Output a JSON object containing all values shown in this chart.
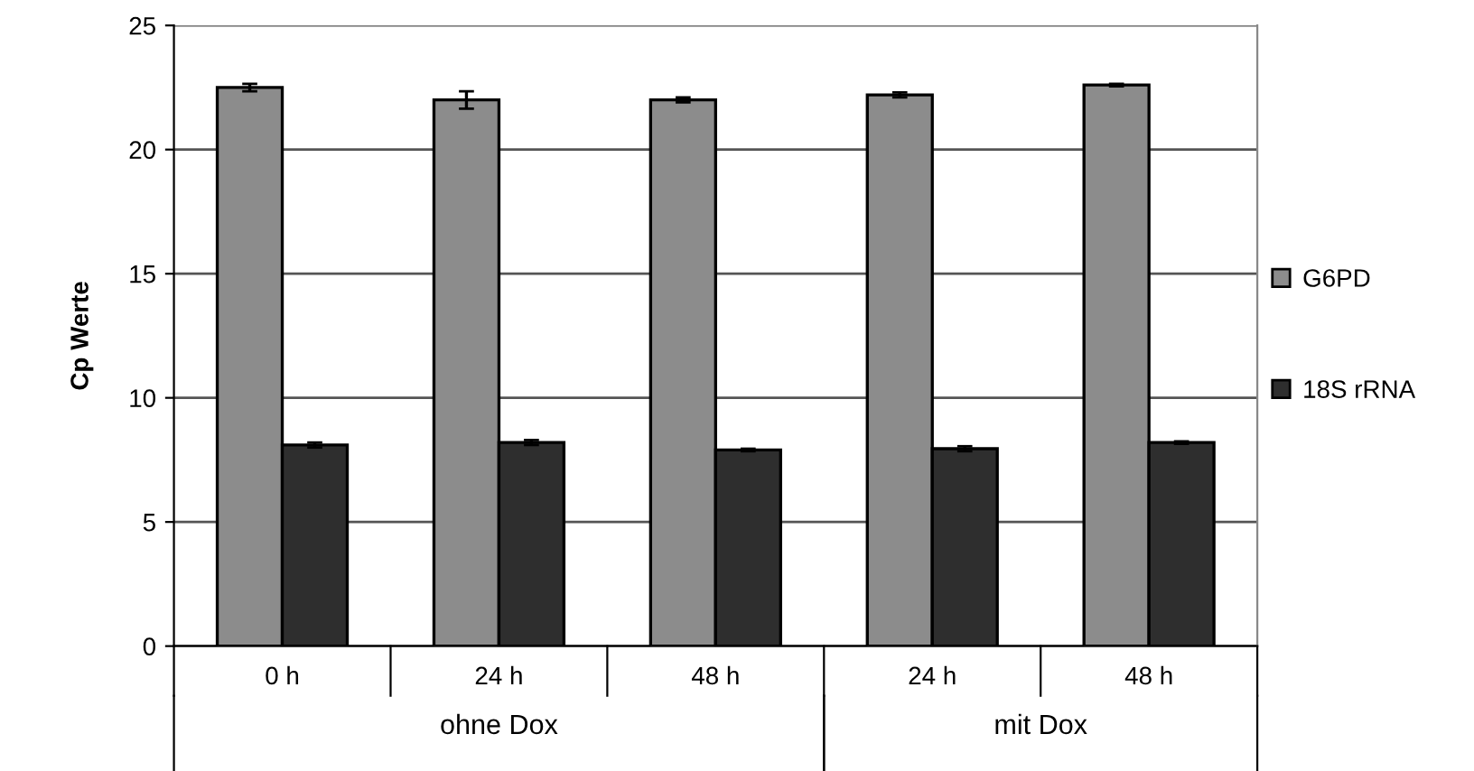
{
  "chart_data": {
    "type": "bar",
    "ylabel": "Cp Werte",
    "categories": [
      "0 h",
      "24 h",
      "48 h",
      "24 h",
      "48 h"
    ],
    "series": [
      {
        "name": "G6PD",
        "color": "#8c8c8c",
        "values": [
          22.5,
          22.0,
          22.0,
          22.2,
          22.6
        ],
        "errors": [
          0.15,
          0.35,
          0.1,
          0.1,
          0.05
        ]
      },
      {
        "name": "18S rRNA",
        "color": "#2e2e2e",
        "values": [
          8.1,
          8.2,
          7.9,
          7.95,
          8.2
        ],
        "errors": [
          0.1,
          0.1,
          0.05,
          0.1,
          0.05
        ]
      }
    ],
    "annotations": [
      "ohne Dox",
      "mit Dox"
    ],
    "ylim": [
      0,
      25
    ],
    "yticks": [
      0,
      5,
      10,
      15,
      20,
      25
    ],
    "grid": "y",
    "legend": "right"
  }
}
